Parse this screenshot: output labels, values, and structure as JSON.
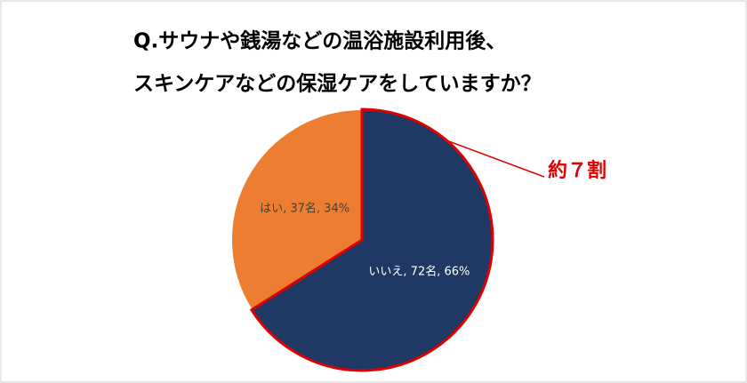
{
  "chart_data": {
    "type": "pie",
    "title_lines": [
      "Q.サウナや銭湯などの温浴施設利用後、",
      "スキンケアなどの保湿ケアをしていますか？"
    ],
    "categories": [
      "いいえ",
      "はい"
    ],
    "values": [
      66,
      34
    ],
    "value_labels": [
      ", 72名, 66%",
      ", 37名, 34%"
    ],
    "colors": [
      "#203864",
      "#ed7d31"
    ],
    "label_colors": [
      "#ffffff",
      "#404040"
    ],
    "highlight": {
      "index": 0,
      "color": "#e00000",
      "annotation": "約７割"
    }
  }
}
